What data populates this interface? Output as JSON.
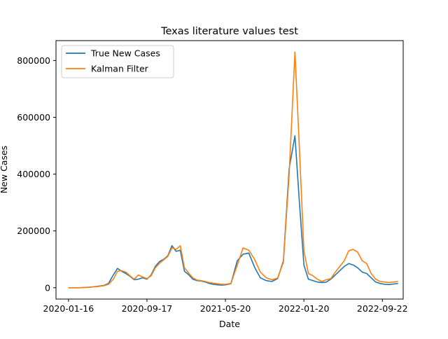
{
  "chart_data": {
    "type": "line",
    "title": "Texas literature values test",
    "xlabel": "Date",
    "ylabel": "New Cases",
    "x_tick_labels": [
      "2020-01-16",
      "2020-09-17",
      "2021-05-20",
      "2022-01-20",
      "2022-09-22"
    ],
    "x_tick_dates": [
      "2020-01-16",
      "2020-09-17",
      "2021-05-20",
      "2022-01-20",
      "2022-09-22"
    ],
    "xlim": [
      "2019-12-08",
      "2022-11-26"
    ],
    "y_tick_labels": [
      "0",
      "200000",
      "400000",
      "600000",
      "800000"
    ],
    "y_tick_values": [
      0,
      200000,
      400000,
      600000,
      800000
    ],
    "ylim": [
      -40000,
      870000
    ],
    "grid": false,
    "legend": {
      "position": "top-left"
    },
    "x": [
      "2020-01-16",
      "2020-02-20",
      "2020-03-26",
      "2020-04-15",
      "2020-05-05",
      "2020-05-20",
      "2020-06-04",
      "2020-06-17",
      "2020-06-30",
      "2020-07-13",
      "2020-07-26",
      "2020-08-08",
      "2020-08-21",
      "2020-09-03",
      "2020-09-17",
      "2020-09-30",
      "2020-10-13",
      "2020-10-26",
      "2020-11-08",
      "2020-11-21",
      "2020-12-04",
      "2020-12-17",
      "2020-12-30",
      "2021-01-12",
      "2021-01-25",
      "2021-02-07",
      "2021-02-20",
      "2021-03-05",
      "2021-03-18",
      "2021-03-31",
      "2021-04-13",
      "2021-04-26",
      "2021-05-09",
      "2021-05-20",
      "2021-06-06",
      "2021-06-26",
      "2021-07-14",
      "2021-08-01",
      "2021-08-19",
      "2021-09-06",
      "2021-09-24",
      "2021-10-12",
      "2021-10-30",
      "2021-11-17",
      "2021-12-05",
      "2021-12-23",
      "2022-01-06",
      "2022-01-20",
      "2022-02-03",
      "2022-02-17",
      "2022-03-03",
      "2022-03-17",
      "2022-03-31",
      "2022-04-14",
      "2022-04-28",
      "2022-05-12",
      "2022-05-26",
      "2022-06-09",
      "2022-06-23",
      "2022-07-07",
      "2022-07-21",
      "2022-08-04",
      "2022-08-18",
      "2022-09-01",
      "2022-09-15",
      "2022-09-29",
      "2022-10-13",
      "2022-10-27",
      "2022-11-10"
    ],
    "series": [
      {
        "name": "True New Cases",
        "color": "#1f77b4",
        "values": [
          0,
          0,
          2000,
          5000,
          8000,
          15000,
          45000,
          68000,
          58000,
          50000,
          40000,
          28000,
          30000,
          35000,
          30000,
          45000,
          75000,
          92000,
          100000,
          112000,
          148000,
          128000,
          132000,
          58000,
          46000,
          30000,
          25000,
          24000,
          20000,
          15000,
          12000,
          10000,
          9000,
          10000,
          14000,
          95000,
          118000,
          122000,
          72000,
          35000,
          25000,
          22000,
          32000,
          95000,
          420000,
          535000,
          300000,
          80000,
          30000,
          25000,
          20000,
          18000,
          20000,
          30000,
          45000,
          60000,
          75000,
          85000,
          80000,
          70000,
          55000,
          50000,
          35000,
          20000,
          15000,
          12000,
          11000,
          13000,
          15000
        ]
      },
      {
        "name": "Kalman Filter",
        "color": "#ff7f0e",
        "values": [
          0,
          0,
          2000,
          4000,
          7000,
          12000,
          30000,
          58000,
          60000,
          55000,
          42000,
          30000,
          45000,
          38000,
          32000,
          42000,
          70000,
          86000,
          98000,
          110000,
          140000,
          135000,
          148000,
          70000,
          52000,
          35000,
          27000,
          25000,
          22000,
          18000,
          16000,
          14000,
          12000,
          12000,
          15000,
          80000,
          140000,
          132000,
          100000,
          55000,
          35000,
          28000,
          34000,
          90000,
          400000,
          830000,
          490000,
          130000,
          50000,
          42000,
          30000,
          22000,
          28000,
          32000,
          55000,
          75000,
          95000,
          130000,
          135000,
          125000,
          95000,
          85000,
          50000,
          30000,
          22000,
          20000,
          18000,
          20000,
          22000
        ]
      }
    ]
  }
}
